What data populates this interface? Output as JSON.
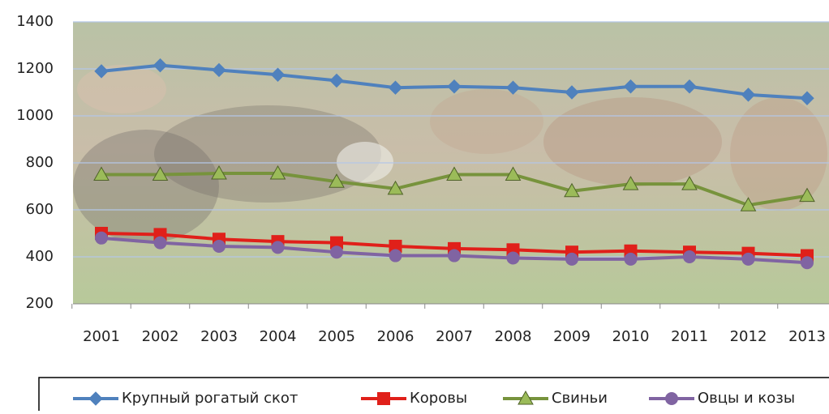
{
  "chart_data": {
    "type": "line",
    "categories": [
      "2001",
      "2002",
      "2003",
      "2004",
      "2005",
      "2006",
      "2007",
      "2008",
      "2009",
      "2010",
      "2011",
      "2012",
      "2013"
    ],
    "series": [
      {
        "name": "Крупный рогатый скот",
        "color": "#4f81bd",
        "marker": "diamond",
        "values": [
          1190,
          1215,
          1195,
          1175,
          1150,
          1120,
          1125,
          1120,
          1100,
          1125,
          1125,
          1090,
          1075
        ]
      },
      {
        "name": "Коровы",
        "color": "#e0201a",
        "marker": "square",
        "values": [
          500,
          495,
          475,
          465,
          460,
          445,
          435,
          430,
          420,
          425,
          420,
          415,
          405
        ]
      },
      {
        "name": "Свиньи",
        "color": "#77933c",
        "marker": "triangle",
        "values": [
          750,
          750,
          755,
          755,
          720,
          690,
          750,
          750,
          680,
          710,
          710,
          620,
          660
        ]
      },
      {
        "name": "Овцы и козы",
        "color": "#8064a2",
        "marker": "circle",
        "values": [
          480,
          460,
          445,
          440,
          420,
          405,
          405,
          395,
          390,
          390,
          400,
          390,
          375
        ]
      }
    ],
    "ylim": [
      200,
      1400
    ],
    "yticks": [
      200,
      400,
      600,
      800,
      1000,
      1200,
      1400
    ],
    "grid": true
  }
}
